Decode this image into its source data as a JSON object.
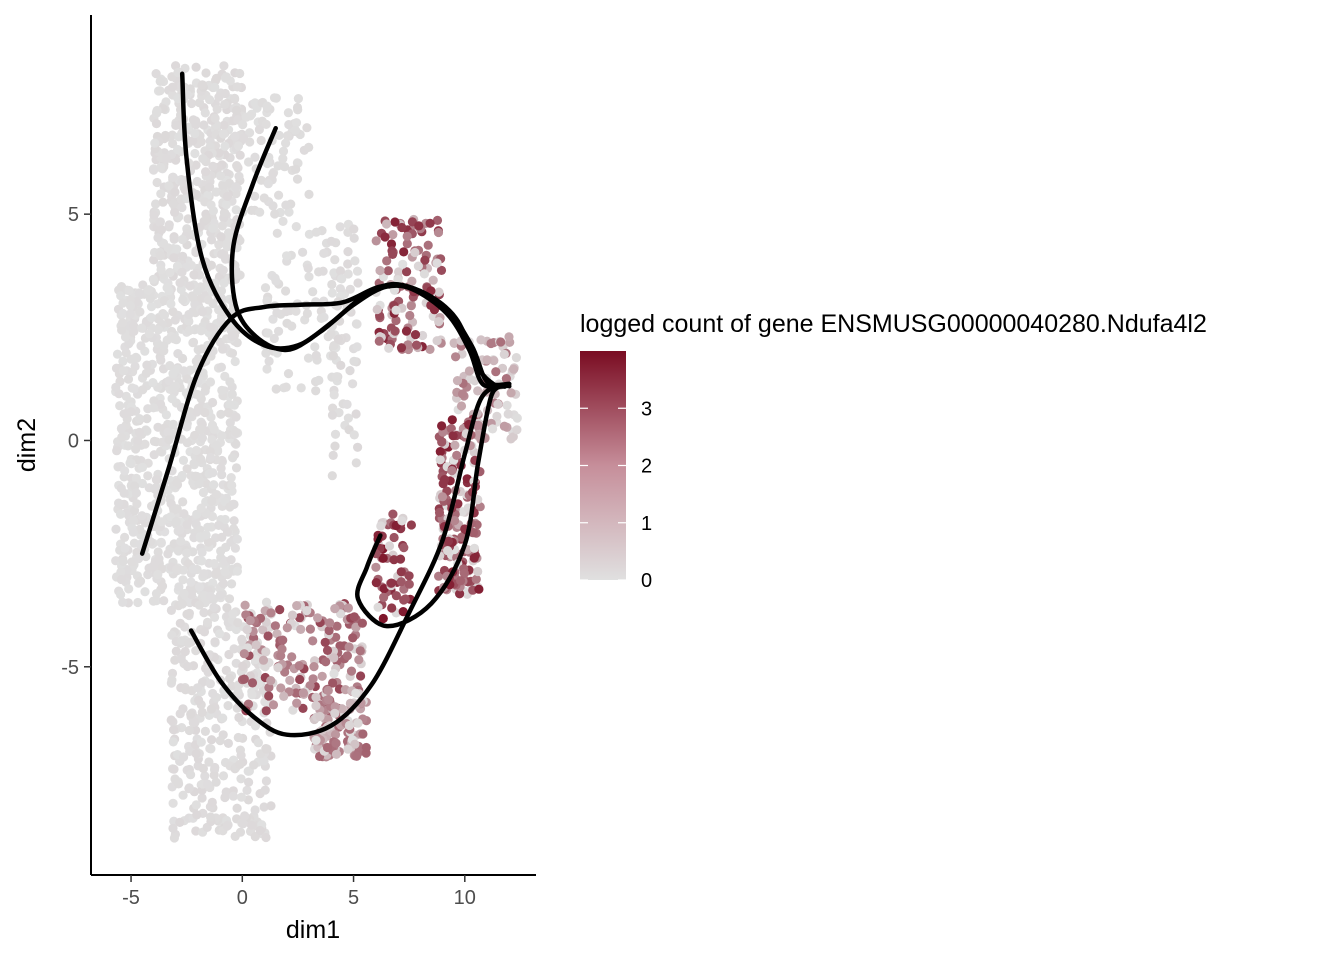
{
  "chart_data": {
    "type": "scatter",
    "xlabel": "dim1",
    "ylabel": "dim2",
    "xlim": [
      -6.8,
      13.2
    ],
    "ylim": [
      -9.6,
      9.4
    ],
    "x_ticks": [
      -5,
      0,
      5,
      10
    ],
    "x_tick_labels": [
      "-5",
      "0",
      "5",
      "10"
    ],
    "y_ticks": [
      -5,
      0,
      5
    ],
    "y_tick_labels": [
      "-5",
      "0",
      "5"
    ],
    "grid": false,
    "legend": {
      "title": "logged count of gene ENSMUSG00000040280.Ndufa4l2",
      "placement": "right",
      "range": [
        0,
        4
      ],
      "ticks": [
        0,
        1,
        2,
        3
      ],
      "tick_labels": [
        "0",
        "1",
        "2",
        "3"
      ],
      "low_color": "#e0e0e0",
      "high_color": "#7a0c22"
    },
    "point_colors": {
      "low": "#e0e0e0",
      "high": "#7a0c22"
    },
    "curve_color": "#000000",
    "regions": [
      {
        "name": "top-stem",
        "x": [
          -4.0,
          0.0
        ],
        "y": [
          3.5,
          8.3
        ],
        "n": 420,
        "expr": [
          0,
          0.15
        ]
      },
      {
        "name": "upper-branch",
        "x": [
          0.0,
          3.0
        ],
        "y": [
          5.0,
          7.6
        ],
        "n": 80,
        "expr": [
          0,
          0.1
        ]
      },
      {
        "name": "left-body",
        "x": [
          -5.7,
          -0.2
        ],
        "y": [
          -3.6,
          3.5
        ],
        "n": 820,
        "expr": [
          0,
          0.1
        ]
      },
      {
        "name": "lower-left-stem",
        "x": [
          -3.2,
          1.3
        ],
        "y": [
          -8.8,
          -3.5
        ],
        "n": 330,
        "expr": [
          0,
          0.15
        ]
      },
      {
        "name": "mid-grey",
        "x": [
          1.0,
          4.8
        ],
        "y": [
          1.0,
          5.0
        ],
        "n": 90,
        "expr": [
          0,
          0.1
        ]
      },
      {
        "name": "grey-arm",
        "x": [
          4.0,
          5.2
        ],
        "y": [
          -0.8,
          4.8
        ],
        "n": 60,
        "expr": [
          0,
          0.15
        ]
      },
      {
        "name": "top-arc",
        "x": [
          6.0,
          9.0
        ],
        "y": [
          2.0,
          4.9
        ],
        "n": 130,
        "expr": [
          0.3,
          3.6
        ]
      },
      {
        "name": "right-edge",
        "x": [
          9.5,
          12.4
        ],
        "y": [
          0.0,
          2.3
        ],
        "n": 90,
        "expr": [
          0,
          2.2
        ]
      },
      {
        "name": "right-vertical",
        "x": [
          8.8,
          10.7
        ],
        "y": [
          -3.4,
          0.5
        ],
        "n": 190,
        "expr": [
          0.8,
          3.7
        ]
      },
      {
        "name": "inner-loop",
        "x": [
          6.0,
          7.6
        ],
        "y": [
          -4.0,
          -1.6
        ],
        "n": 60,
        "expr": [
          1.5,
          3.9
        ]
      },
      {
        "name": "bottom-arm",
        "x": [
          0.0,
          5.4
        ],
        "y": [
          -6.0,
          -3.6
        ],
        "n": 170,
        "expr": [
          0.2,
          3.0
        ]
      },
      {
        "name": "bottom-cluster",
        "x": [
          3.2,
          5.6
        ],
        "y": [
          -7.0,
          -5.5
        ],
        "n": 110,
        "expr": [
          0.3,
          2.4
        ]
      }
    ],
    "trajectories": [
      {
        "name": "trajectory-1",
        "points": [
          [
            -2.7,
            8.1
          ],
          [
            -2.5,
            6.2
          ],
          [
            -1.8,
            4.0
          ],
          [
            -0.5,
            2.7
          ],
          [
            1.0,
            2.1
          ],
          [
            2.5,
            2.1
          ],
          [
            4.0,
            2.6
          ],
          [
            5.5,
            3.2
          ],
          [
            7.0,
            3.45
          ],
          [
            9.0,
            3.0
          ],
          [
            10.3,
            2.1
          ],
          [
            11.0,
            1.3
          ],
          [
            12.0,
            1.25
          ]
        ]
      },
      {
        "name": "trajectory-2",
        "points": [
          [
            1.5,
            6.9
          ],
          [
            0.5,
            5.7
          ],
          [
            -0.4,
            4.3
          ],
          [
            -0.3,
            3.0
          ],
          [
            0.6,
            2.3
          ],
          [
            2.0,
            2.0
          ],
          [
            3.5,
            2.4
          ],
          [
            5.0,
            3.0
          ],
          [
            6.5,
            3.4
          ],
          [
            8.0,
            3.3
          ],
          [
            9.6,
            2.7
          ],
          [
            10.6,
            1.6
          ],
          [
            11.4,
            1.2
          ]
        ]
      },
      {
        "name": "trajectory-3",
        "points": [
          [
            -4.5,
            -2.5
          ],
          [
            -3.3,
            -0.6
          ],
          [
            -2.0,
            1.5
          ],
          [
            -0.5,
            2.7
          ],
          [
            1.0,
            2.95
          ],
          [
            2.6,
            3.0
          ],
          [
            4.5,
            3.05
          ],
          [
            6.2,
            3.4
          ],
          [
            7.6,
            3.35
          ],
          [
            9.2,
            2.8
          ],
          [
            10.2,
            2.0
          ],
          [
            10.8,
            1.25
          ],
          [
            11.8,
            1.2
          ],
          [
            11.2,
            1.0
          ],
          [
            10.6,
            -0.5
          ],
          [
            10.0,
            -2.3
          ],
          [
            8.5,
            -3.6
          ],
          [
            6.5,
            -4.1
          ],
          [
            5.2,
            -3.5
          ],
          [
            5.6,
            -2.8
          ],
          [
            6.2,
            -2.1
          ]
        ]
      },
      {
        "name": "trajectory-4",
        "points": [
          [
            -2.3,
            -4.2
          ],
          [
            -1.0,
            -5.3
          ],
          [
            0.5,
            -6.1
          ],
          [
            2.0,
            -6.5
          ],
          [
            4.0,
            -6.3
          ],
          [
            5.8,
            -5.4
          ],
          [
            7.5,
            -3.8
          ],
          [
            9.0,
            -2.2
          ],
          [
            10.0,
            -0.3
          ],
          [
            10.7,
            0.9
          ],
          [
            11.5,
            1.2
          ],
          [
            12.0,
            1.2
          ]
        ]
      }
    ]
  }
}
